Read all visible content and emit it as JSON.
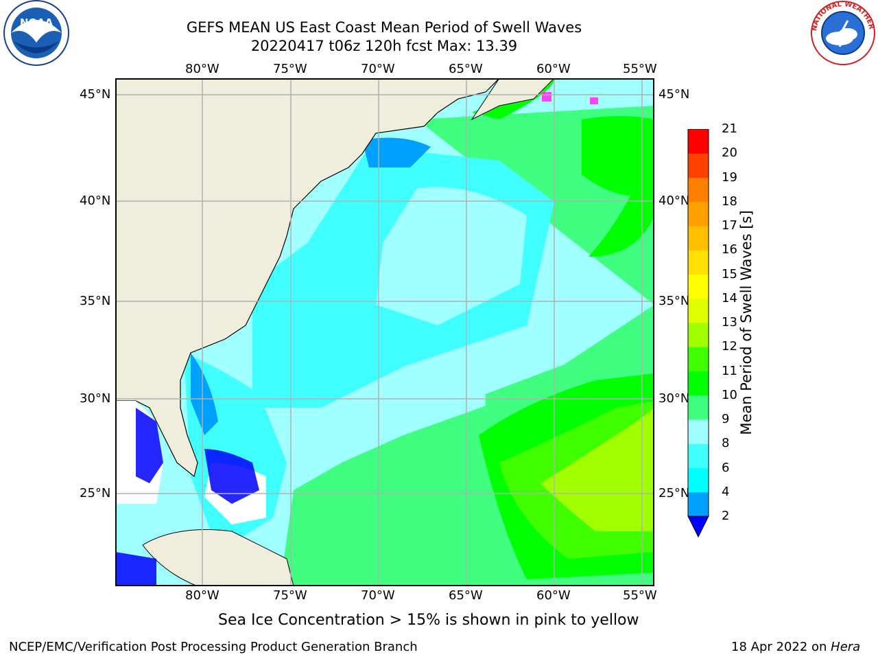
{
  "header": {
    "title_line1": "GEFS MEAN US East Coast Mean Period of Swell Waves",
    "title_line2": "20220417 t06z 120h fcst   Max: 13.39"
  },
  "logos": {
    "left": {
      "name": "noaa-logo",
      "text": "NOAA"
    },
    "right": {
      "name": "national-weather-service-logo",
      "text": "NATIONAL WEATHER SERVICE"
    }
  },
  "map": {
    "lon_labels": [
      "80°W",
      "75°W",
      "70°W",
      "65°W",
      "60°W",
      "55°W"
    ],
    "lat_labels": [
      "45°N",
      "40°N",
      "35°N",
      "30°N",
      "25°N"
    ]
  },
  "colorbar": {
    "label": "Mean Period of Swell Waves [s]",
    "levels": [
      "2",
      "4",
      "6",
      "8",
      "9",
      "10",
      "11",
      "12",
      "13",
      "14",
      "15",
      "16",
      "17",
      "18",
      "19",
      "20",
      "21"
    ],
    "colors": [
      "#0040ff",
      "#00a0ff",
      "#00ffff",
      "#40ffff",
      "#a0ffff",
      "#40ff80",
      "#00ff00",
      "#40ff00",
      "#a0ff00",
      "#e0ff00",
      "#ffff00",
      "#ffe000",
      "#ffc000",
      "#ffa000",
      "#ff8000",
      "#ff4000",
      "#ff0000"
    ],
    "under_color": "#0000ff"
  },
  "notes": {
    "sea_ice": "Sea Ice Concentration > 15% is shown in pink to yellow"
  },
  "footer": {
    "left": "NCEP/EMC/Verification Post Processing Product Generation Branch",
    "right_prefix": "18 Apr 2022 on ",
    "right_host": "Hera"
  }
}
